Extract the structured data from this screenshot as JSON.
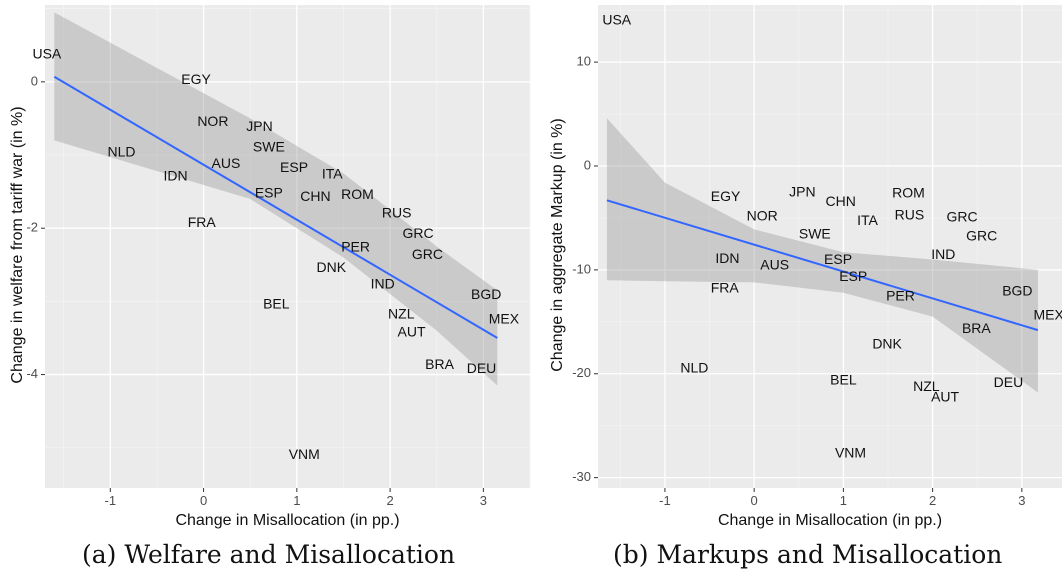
{
  "chart_data": [
    {
      "type": "scatter",
      "title": "",
      "caption": "(a) Welfare and Misallocation",
      "xlabel": "Change in Misallocation (in pp.)",
      "ylabel": "Change in welfare from tariff war (in %)",
      "xlim": [
        -1.7,
        3.5
      ],
      "ylim": [
        -5.55,
        1.05
      ],
      "xticks": [
        -1,
        0,
        1,
        2,
        3
      ],
      "yticks": [
        -4,
        -2,
        0
      ],
      "grid": true,
      "fit_line": {
        "x": [
          -1.6,
          3.15
        ],
        "y": [
          0.07,
          -3.5
        ],
        "color": "#3366ff"
      },
      "confidence_band": {
        "x": [
          -1.6,
          0.5,
          1.5,
          2.5,
          3.15
        ],
        "lower": [
          -0.8,
          -1.6,
          -2.4,
          -3.4,
          -4.15
        ],
        "upper": [
          0.95,
          -0.5,
          -1.25,
          -2.25,
          -2.85
        ]
      },
      "points": [
        {
          "label": "USA",
          "x": -1.68,
          "y": 0.37
        },
        {
          "label": "EGY",
          "x": -0.08,
          "y": 0.02
        },
        {
          "label": "NOR",
          "x": 0.1,
          "y": -0.55
        },
        {
          "label": "JPN",
          "x": 0.6,
          "y": -0.62
        },
        {
          "label": "SWE",
          "x": 0.7,
          "y": -0.9
        },
        {
          "label": "NLD",
          "x": -0.88,
          "y": -0.97
        },
        {
          "label": "ESP",
          "x": 0.97,
          "y": -1.18
        },
        {
          "label": "ITA",
          "x": 1.38,
          "y": -1.27
        },
        {
          "label": "AUS",
          "x": 0.24,
          "y": -1.13
        },
        {
          "label": "IDN",
          "x": -0.3,
          "y": -1.3
        },
        {
          "label": "ESP",
          "x": 0.7,
          "y": -1.53
        },
        {
          "label": "CHN",
          "x": 1.2,
          "y": -1.58
        },
        {
          "label": "ROM",
          "x": 1.65,
          "y": -1.55
        },
        {
          "label": "RUS",
          "x": 2.07,
          "y": -1.8
        },
        {
          "label": "FRA",
          "x": -0.02,
          "y": -1.93
        },
        {
          "label": "GRC",
          "x": 2.3,
          "y": -2.08
        },
        {
          "label": "PER",
          "x": 1.63,
          "y": -2.27
        },
        {
          "label": "GRC",
          "x": 2.4,
          "y": -2.37
        },
        {
          "label": "DNK",
          "x": 1.37,
          "y": -2.55
        },
        {
          "label": "IND",
          "x": 1.92,
          "y": -2.77
        },
        {
          "label": "BGD",
          "x": 3.03,
          "y": -2.92
        },
        {
          "label": "BEL",
          "x": 0.78,
          "y": -3.05
        },
        {
          "label": "NZL",
          "x": 2.12,
          "y": -3.18
        },
        {
          "label": "MEX",
          "x": 3.22,
          "y": -3.25
        },
        {
          "label": "AUT",
          "x": 2.23,
          "y": -3.43
        },
        {
          "label": "BRA",
          "x": 2.53,
          "y": -3.87
        },
        {
          "label": "DEU",
          "x": 2.98,
          "y": -3.93
        },
        {
          "label": "VNM",
          "x": 1.08,
          "y": -5.1
        }
      ]
    },
    {
      "type": "scatter",
      "title": "",
      "caption": "(b) Markups and Misallocation",
      "xlabel": "Change in Misallocation (in pp.)",
      "ylabel": "Change in aggregate Markup (in %)",
      "xlim": [
        -1.75,
        3.45
      ],
      "ylim": [
        -31,
        15.5
      ],
      "xticks": [
        -1,
        0,
        1,
        2,
        3
      ],
      "yticks": [
        -30,
        -20,
        -10,
        0,
        10
      ],
      "grid": true,
      "fit_line": {
        "x": [
          -1.65,
          3.18
        ],
        "y": [
          -3.3,
          -15.8
        ],
        "color": "#3366ff"
      },
      "confidence_band": {
        "x": [
          -1.65,
          -1.0,
          0.0,
          1.0,
          2.0,
          3.18
        ],
        "lower": [
          -11.0,
          -11.1,
          -11.2,
          -12.2,
          -14.5,
          -21.8
        ],
        "upper": [
          4.6,
          -1.6,
          -6.1,
          -8.3,
          -9.0,
          -10.0
        ]
      },
      "points": [
        {
          "label": "USA",
          "x": -1.54,
          "y": 14.0
        },
        {
          "label": "JPN",
          "x": 0.54,
          "y": -2.6
        },
        {
          "label": "ROM",
          "x": 1.73,
          "y": -2.7
        },
        {
          "label": "EGY",
          "x": -0.32,
          "y": -3.0
        },
        {
          "label": "CHN",
          "x": 0.97,
          "y": -3.5
        },
        {
          "label": "NOR",
          "x": 0.09,
          "y": -4.9
        },
        {
          "label": "RUS",
          "x": 1.74,
          "y": -4.8
        },
        {
          "label": "GRC",
          "x": 2.33,
          "y": -5.0
        },
        {
          "label": "ITA",
          "x": 1.27,
          "y": -5.3
        },
        {
          "label": "SWE",
          "x": 0.68,
          "y": -6.6
        },
        {
          "label": "GRC",
          "x": 2.55,
          "y": -6.8
        },
        {
          "label": "IND",
          "x": 2.12,
          "y": -8.6
        },
        {
          "label": "IDN",
          "x": -0.3,
          "y": -9.0
        },
        {
          "label": "ESP",
          "x": 0.94,
          "y": -9.1
        },
        {
          "label": "AUS",
          "x": 0.23,
          "y": -9.6
        },
        {
          "label": "ESP",
          "x": 1.11,
          "y": -10.7
        },
        {
          "label": "FRA",
          "x": -0.33,
          "y": -11.8
        },
        {
          "label": "BGD",
          "x": 2.95,
          "y": -12.1
        },
        {
          "label": "PER",
          "x": 1.64,
          "y": -12.6
        },
        {
          "label": "MEX",
          "x": 3.3,
          "y": -14.4
        },
        {
          "label": "BRA",
          "x": 2.49,
          "y": -15.7
        },
        {
          "label": "DNK",
          "x": 1.49,
          "y": -17.2
        },
        {
          "label": "NLD",
          "x": -0.67,
          "y": -19.5
        },
        {
          "label": "BEL",
          "x": 1.0,
          "y": -20.7
        },
        {
          "label": "DEU",
          "x": 2.85,
          "y": -20.9
        },
        {
          "label": "NZL",
          "x": 1.93,
          "y": -21.3
        },
        {
          "label": "AUT",
          "x": 2.14,
          "y": -22.3
        },
        {
          "label": "VNM",
          "x": 1.08,
          "y": -27.7
        }
      ]
    }
  ]
}
